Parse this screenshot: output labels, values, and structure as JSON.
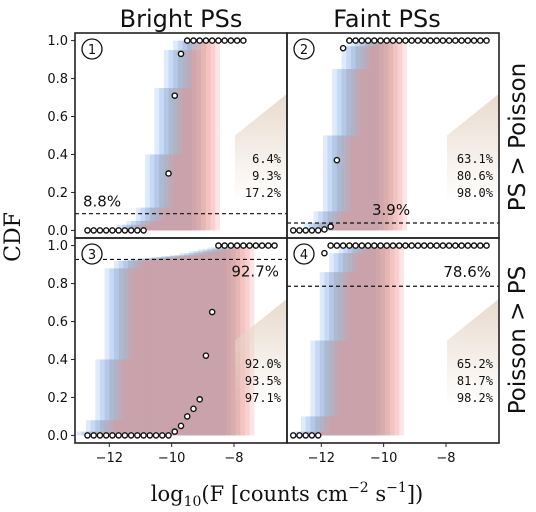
{
  "chart_data": {
    "type": "step",
    "x_axis_label_main": "log",
    "x_axis_label_sub": "10",
    "x_axis_label_rest": "(F [counts cm",
    "x_axis_label_sup1": "−2",
    "x_axis_label_mid": " s",
    "x_axis_label_sup2": "−1",
    "x_axis_label_end": "])",
    "y_axis_label": "CDF",
    "column_titles": [
      "Bright PSs",
      "Faint PSs"
    ],
    "row_titles": [
      "PS > Poisson",
      "Poisson > PS"
    ],
    "xlim": [
      -13.1,
      -6.3
    ],
    "ylim": [
      -0.04,
      1.04
    ],
    "x_ticks": [
      -12,
      -10,
      -8
    ],
    "x_tick_labels": [
      "−12",
      "−10",
      "−8"
    ],
    "y_ticks": [
      0.0,
      0.2,
      0.4,
      0.6,
      0.8,
      1.0
    ],
    "y_tick_labels": [
      "0.0",
      "0.2",
      "0.4",
      "0.6",
      "0.8",
      "1.0"
    ],
    "colors": {
      "band_low": "#6f9ee8",
      "band_high": "#f08a86",
      "threshold_line": "#111111",
      "marker_edge": "#111111",
      "marker_fill": "#ffffff",
      "wedge": "#e6d6c8"
    },
    "panels": [
      {
        "badge": "1",
        "threshold": 0.088,
        "threshold_label": "8.8%",
        "percentages": [
          "6.4%",
          "9.3%",
          "17.2%"
        ],
        "band": {
          "edges": [
            -12.2,
            -11.9,
            -11.6,
            -11.3,
            -11.0,
            -10.7,
            -10.4,
            -10.1,
            -9.8,
            -9.5,
            -9.2,
            -8.9
          ],
          "cdf": [
            0.0,
            0.005,
            0.01,
            0.03,
            0.05,
            0.12,
            0.4,
            0.75,
            0.95,
            1.0,
            1.0,
            1.0
          ]
        },
        "points": {
          "x": [
            -12.7,
            -12.5,
            -12.3,
            -12.1,
            -11.9,
            -11.7,
            -11.5,
            -11.3,
            -11.1,
            -10.9,
            -10.1,
            -9.9,
            -9.7,
            -9.5,
            -9.3,
            -9.1,
            -8.9,
            -8.7,
            -8.5,
            -8.3,
            -8.1,
            -7.9,
            -7.7
          ],
          "y": [
            0.0,
            0.0,
            0.0,
            0.0,
            0.0,
            0.0,
            0.0,
            0.0,
            0.0,
            0.0,
            0.3,
            0.71,
            0.93,
            1.0,
            1.0,
            1.0,
            1.0,
            1.0,
            1.0,
            1.0,
            1.0,
            1.0,
            1.0
          ]
        }
      },
      {
        "badge": "2",
        "threshold": 0.039,
        "threshold_label": "3.9%",
        "percentages": [
          "63.1%",
          "80.6%",
          "98.0%"
        ],
        "band": {
          "edges": [
            -12.4,
            -12.1,
            -11.8,
            -11.5,
            -11.2,
            -10.9,
            -10.6,
            -10.3,
            -10.0,
            -9.7
          ],
          "cdf": [
            0.0,
            0.04,
            0.1,
            0.5,
            0.85,
            0.97,
            1.0,
            1.0,
            1.0,
            1.0
          ]
        },
        "points": {
          "x": [
            -12.9,
            -12.7,
            -12.5,
            -12.3,
            -12.1,
            -11.9,
            -11.7,
            -11.5,
            -11.3,
            -11.1,
            -10.9,
            -10.7,
            -10.5,
            -10.3,
            -10.1,
            -9.9,
            -9.7,
            -9.5,
            -9.3,
            -9.1,
            -8.9,
            -8.7,
            -8.5,
            -8.3,
            -8.1,
            -7.9,
            -7.7,
            -7.5,
            -7.3,
            -7.1,
            -6.9,
            -6.7
          ],
          "y": [
            0.0,
            0.0,
            0.0,
            0.0,
            0.0,
            0.005,
            0.02,
            0.37,
            0.96,
            1.0,
            1.0,
            1.0,
            1.0,
            1.0,
            1.0,
            1.0,
            1.0,
            1.0,
            1.0,
            1.0,
            1.0,
            1.0,
            1.0,
            1.0,
            1.0,
            1.0,
            1.0,
            1.0,
            1.0,
            1.0,
            1.0,
            1.0
          ]
        }
      },
      {
        "badge": "3",
        "threshold": 0.927,
        "threshold_label": "92.7%",
        "percentages": [
          "92.0%",
          "93.5%",
          "97.1%"
        ],
        "band": {
          "edges": [
            -12.6,
            -12.3,
            -12.0,
            -11.7,
            -11.4,
            -11.1,
            -10.8,
            -10.5,
            -10.2,
            -9.9,
            -9.6,
            -9.3,
            -9.0,
            -8.7,
            -8.4,
            -8.1,
            -7.8
          ],
          "cdf": [
            0.02,
            0.08,
            0.4,
            0.88,
            0.92,
            0.925,
            0.93,
            0.935,
            0.94,
            0.945,
            0.95,
            0.96,
            0.97,
            0.98,
            0.99,
            1.0,
            1.0
          ]
        },
        "points": {
          "x": [
            -12.7,
            -12.5,
            -12.3,
            -12.1,
            -11.9,
            -11.7,
            -11.5,
            -11.3,
            -11.1,
            -10.9,
            -10.7,
            -10.5,
            -10.3,
            -10.1,
            -9.9,
            -9.7,
            -9.5,
            -9.3,
            -9.1,
            -8.9,
            -8.7,
            -8.5,
            -8.3,
            -8.1,
            -7.9,
            -7.7,
            -7.5,
            -7.3,
            -7.1,
            -6.9,
            -6.7
          ],
          "y": [
            0.0,
            0.0,
            0.0,
            0.0,
            0.0,
            0.0,
            0.0,
            0.0,
            0.0,
            0.0,
            0.0,
            0.0,
            0.0,
            0.0,
            0.02,
            0.05,
            0.1,
            0.14,
            0.19,
            0.42,
            0.65,
            1.0,
            1.0,
            1.0,
            1.0,
            1.0,
            1.0,
            1.0,
            1.0,
            1.0,
            1.0
          ]
        }
      },
      {
        "badge": "4",
        "threshold": 0.786,
        "threshold_label": "78.6%",
        "percentages": [
          "65.2%",
          "81.7%",
          "98.2%"
        ],
        "band": {
          "edges": [
            -12.5,
            -12.2,
            -11.9,
            -11.6,
            -11.3,
            -11.0,
            -10.7,
            -10.4,
            -10.1,
            -9.8
          ],
          "cdf": [
            0.02,
            0.1,
            0.5,
            0.86,
            0.96,
            1.0,
            1.0,
            1.0,
            1.0,
            1.0
          ]
        },
        "points": {
          "x": [
            -12.9,
            -12.7,
            -12.5,
            -12.3,
            -12.1,
            -11.9,
            -11.7,
            -11.5,
            -11.3,
            -11.1,
            -10.9,
            -10.7,
            -10.5,
            -10.3,
            -10.1,
            -9.9,
            -9.7,
            -9.5,
            -9.3,
            -9.1,
            -8.9,
            -8.7,
            -8.5,
            -8.3,
            -8.1,
            -7.9,
            -7.7,
            -7.5,
            -7.3,
            -7.1,
            -6.9,
            -6.7
          ],
          "y": [
            0.0,
            0.0,
            0.0,
            0.0,
            0.0,
            0.96,
            1.0,
            1.0,
            1.0,
            1.0,
            1.0,
            1.0,
            1.0,
            1.0,
            1.0,
            1.0,
            1.0,
            1.0,
            1.0,
            1.0,
            1.0,
            1.0,
            1.0,
            1.0,
            1.0,
            1.0,
            1.0,
            1.0,
            1.0,
            1.0,
            1.0,
            1.0
          ]
        }
      }
    ]
  }
}
